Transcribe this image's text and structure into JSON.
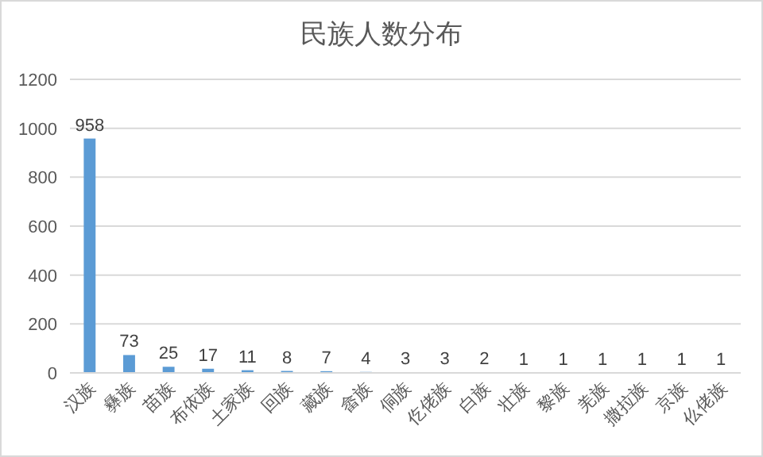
{
  "chart_data": {
    "type": "bar",
    "title": "民族人数分布",
    "categories": [
      "汉族",
      "彝族",
      "苗族",
      "布依族",
      "土家族",
      "回族",
      "藏族",
      "畲族",
      "侗族",
      "仡佬族",
      "白族",
      "壮族",
      "黎族",
      "羌族",
      "撒拉族",
      "京族",
      "仫佬族"
    ],
    "values": [
      958,
      73,
      25,
      17,
      11,
      8,
      7,
      4,
      3,
      3,
      2,
      1,
      1,
      1,
      1,
      1,
      1
    ],
    "color": "#5b9bd5",
    "ylim": [
      0,
      1200
    ],
    "yticks": [
      0,
      200,
      400,
      600,
      800,
      1000,
      1200
    ],
    "grid": "y",
    "data_labels": true
  }
}
